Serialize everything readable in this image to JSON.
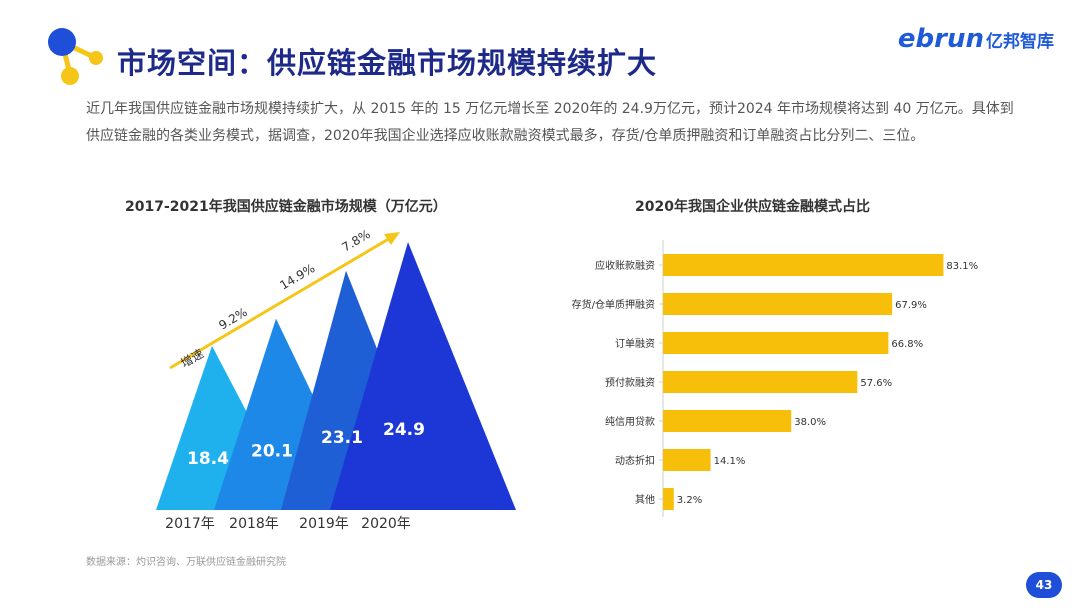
{
  "header": {
    "title": "市场空间：供应链金融市场规模持续扩大",
    "brand_latin": "ebrun",
    "brand_cn": "亿邦智库"
  },
  "description": "近几年我国供应链金融市场规模持续扩大，从 2015 年的 15 万亿元增长至 2020年的 24.9万亿元，预计2024 年市场规模将达到 40 万亿元。具体到供应链金融的各类业务模式，据调查，2020年我国企业选择应收账款融资模式最多，存货/仓单质押融资和订单融资占比分列二、三位。",
  "footer": {
    "source": "数据来源：灼识咨询、万联供应链金融研究院",
    "page_number": "43"
  },
  "colors": {
    "title": "#1d2a8a",
    "bar": "#f7bf0a",
    "arrow": "#f5c518",
    "peaks": [
      "#1fb0ee",
      "#1e88e8",
      "#1e5fd6",
      "#1c37d6"
    ]
  },
  "chart_data": [
    {
      "type": "area",
      "title": "2017-2021年我国供应链金融市场规模（万亿元）",
      "categories": [
        "2017年",
        "2018年",
        "2019年",
        "2020年"
      ],
      "values": [
        18.4,
        20.1,
        23.1,
        24.9
      ],
      "growth_label": "增速",
      "growth_rates": [
        "9.2%",
        "14.9%",
        "7.8%"
      ]
    },
    {
      "type": "bar",
      "orientation": "horizontal",
      "title": "2020年我国企业供应链金融模式占比",
      "categories": [
        "应收账款融资",
        "存货/仓单质押融资",
        "订单融资",
        "预付款融资",
        "纯信用贷款",
        "动态折扣",
        "其他"
      ],
      "values": [
        83.1,
        67.9,
        66.8,
        57.6,
        38.0,
        14.1,
        3.2
      ],
      "value_labels": [
        "83.1%",
        "67.9%",
        "66.8%",
        "57.6%",
        "38.0%",
        "14.1%",
        "3.2%"
      ],
      "xlim": [
        0,
        100
      ]
    }
  ]
}
